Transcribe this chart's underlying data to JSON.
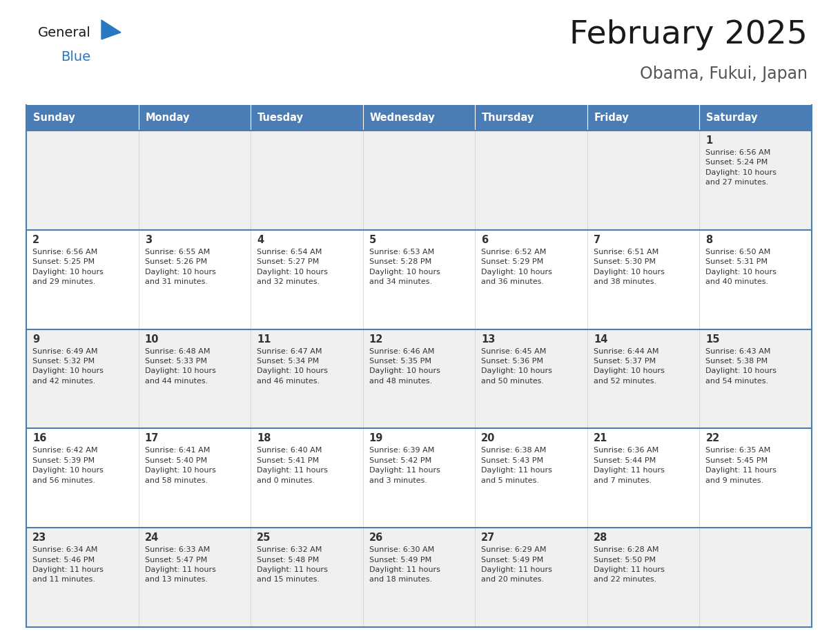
{
  "title": "February 2025",
  "subtitle": "Obama, Fukui, Japan",
  "header_bg": "#4a7db5",
  "header_text": "#ffffff",
  "row0_bg": "#f0f0f0",
  "row1_bg": "#ffffff",
  "border_color": "#4a7db5",
  "text_color": "#333333",
  "days_of_week": [
    "Sunday",
    "Monday",
    "Tuesday",
    "Wednesday",
    "Thursday",
    "Friday",
    "Saturday"
  ],
  "calendar": [
    [
      {
        "day": "",
        "info": ""
      },
      {
        "day": "",
        "info": ""
      },
      {
        "day": "",
        "info": ""
      },
      {
        "day": "",
        "info": ""
      },
      {
        "day": "",
        "info": ""
      },
      {
        "day": "",
        "info": ""
      },
      {
        "day": "1",
        "info": "Sunrise: 6:56 AM\nSunset: 5:24 PM\nDaylight: 10 hours\nand 27 minutes."
      }
    ],
    [
      {
        "day": "2",
        "info": "Sunrise: 6:56 AM\nSunset: 5:25 PM\nDaylight: 10 hours\nand 29 minutes."
      },
      {
        "day": "3",
        "info": "Sunrise: 6:55 AM\nSunset: 5:26 PM\nDaylight: 10 hours\nand 31 minutes."
      },
      {
        "day": "4",
        "info": "Sunrise: 6:54 AM\nSunset: 5:27 PM\nDaylight: 10 hours\nand 32 minutes."
      },
      {
        "day": "5",
        "info": "Sunrise: 6:53 AM\nSunset: 5:28 PM\nDaylight: 10 hours\nand 34 minutes."
      },
      {
        "day": "6",
        "info": "Sunrise: 6:52 AM\nSunset: 5:29 PM\nDaylight: 10 hours\nand 36 minutes."
      },
      {
        "day": "7",
        "info": "Sunrise: 6:51 AM\nSunset: 5:30 PM\nDaylight: 10 hours\nand 38 minutes."
      },
      {
        "day": "8",
        "info": "Sunrise: 6:50 AM\nSunset: 5:31 PM\nDaylight: 10 hours\nand 40 minutes."
      }
    ],
    [
      {
        "day": "9",
        "info": "Sunrise: 6:49 AM\nSunset: 5:32 PM\nDaylight: 10 hours\nand 42 minutes."
      },
      {
        "day": "10",
        "info": "Sunrise: 6:48 AM\nSunset: 5:33 PM\nDaylight: 10 hours\nand 44 minutes."
      },
      {
        "day": "11",
        "info": "Sunrise: 6:47 AM\nSunset: 5:34 PM\nDaylight: 10 hours\nand 46 minutes."
      },
      {
        "day": "12",
        "info": "Sunrise: 6:46 AM\nSunset: 5:35 PM\nDaylight: 10 hours\nand 48 minutes."
      },
      {
        "day": "13",
        "info": "Sunrise: 6:45 AM\nSunset: 5:36 PM\nDaylight: 10 hours\nand 50 minutes."
      },
      {
        "day": "14",
        "info": "Sunrise: 6:44 AM\nSunset: 5:37 PM\nDaylight: 10 hours\nand 52 minutes."
      },
      {
        "day": "15",
        "info": "Sunrise: 6:43 AM\nSunset: 5:38 PM\nDaylight: 10 hours\nand 54 minutes."
      }
    ],
    [
      {
        "day": "16",
        "info": "Sunrise: 6:42 AM\nSunset: 5:39 PM\nDaylight: 10 hours\nand 56 minutes."
      },
      {
        "day": "17",
        "info": "Sunrise: 6:41 AM\nSunset: 5:40 PM\nDaylight: 10 hours\nand 58 minutes."
      },
      {
        "day": "18",
        "info": "Sunrise: 6:40 AM\nSunset: 5:41 PM\nDaylight: 11 hours\nand 0 minutes."
      },
      {
        "day": "19",
        "info": "Sunrise: 6:39 AM\nSunset: 5:42 PM\nDaylight: 11 hours\nand 3 minutes."
      },
      {
        "day": "20",
        "info": "Sunrise: 6:38 AM\nSunset: 5:43 PM\nDaylight: 11 hours\nand 5 minutes."
      },
      {
        "day": "21",
        "info": "Sunrise: 6:36 AM\nSunset: 5:44 PM\nDaylight: 11 hours\nand 7 minutes."
      },
      {
        "day": "22",
        "info": "Sunrise: 6:35 AM\nSunset: 5:45 PM\nDaylight: 11 hours\nand 9 minutes."
      }
    ],
    [
      {
        "day": "23",
        "info": "Sunrise: 6:34 AM\nSunset: 5:46 PM\nDaylight: 11 hours\nand 11 minutes."
      },
      {
        "day": "24",
        "info": "Sunrise: 6:33 AM\nSunset: 5:47 PM\nDaylight: 11 hours\nand 13 minutes."
      },
      {
        "day": "25",
        "info": "Sunrise: 6:32 AM\nSunset: 5:48 PM\nDaylight: 11 hours\nand 15 minutes."
      },
      {
        "day": "26",
        "info": "Sunrise: 6:30 AM\nSunset: 5:49 PM\nDaylight: 11 hours\nand 18 minutes."
      },
      {
        "day": "27",
        "info": "Sunrise: 6:29 AM\nSunset: 5:49 PM\nDaylight: 11 hours\nand 20 minutes."
      },
      {
        "day": "28",
        "info": "Sunrise: 6:28 AM\nSunset: 5:50 PM\nDaylight: 11 hours\nand 22 minutes."
      },
      {
        "day": "",
        "info": ""
      }
    ]
  ],
  "logo_color_general": "#1a1a1a",
  "logo_color_blue": "#2878c0",
  "logo_triangle_color": "#2878c0",
  "fig_width": 11.88,
  "fig_height": 9.18,
  "dpi": 100
}
